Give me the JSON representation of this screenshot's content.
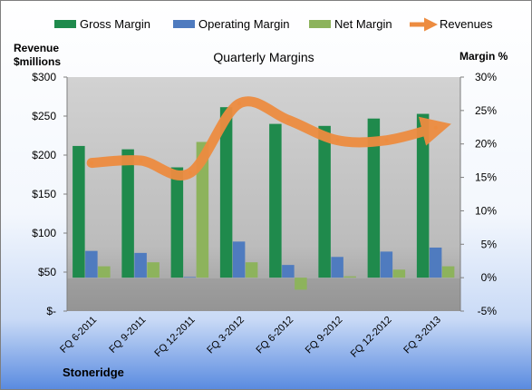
{
  "chart_data": {
    "type": "bar",
    "title": "Quarterly Margins",
    "company": "Stoneridge",
    "y_left_label_line1": "Revenue",
    "y_left_label_line2": "$millions",
    "y_right_label": "Margin %",
    "categories": [
      "FQ 6-2011",
      "FQ 9-2011",
      "FQ 12-2011",
      "FQ 3-2012",
      "FQ 6-2012",
      "FQ 9-2012",
      "FQ 12-2012",
      "FQ 3-2013"
    ],
    "left_axis": {
      "min": 0,
      "max": 300,
      "ticks": [
        0,
        50,
        100,
        150,
        200,
        250,
        300
      ],
      "tick_labels": [
        "$-",
        "$50",
        "$100",
        "$150",
        "$200",
        "$250",
        "$300"
      ]
    },
    "right_axis": {
      "min": -5,
      "max": 30,
      "ticks": [
        -5,
        0,
        5,
        10,
        15,
        20,
        25,
        30
      ],
      "tick_labels": [
        "-5%",
        "0%",
        "5%",
        "10%",
        "15%",
        "20%",
        "25%",
        "30%"
      ]
    },
    "series": [
      {
        "name": "Gross Margin",
        "kind": "bar",
        "axis": "right",
        "color": "#1f8a4c",
        "values": [
          19.7,
          19.2,
          16.5,
          25.5,
          23.0,
          22.7,
          23.8,
          24.5
        ]
      },
      {
        "name": "Operating Margin",
        "kind": "bar",
        "axis": "right",
        "color": "#4f7bbf",
        "values": [
          4.0,
          3.7,
          0.1,
          5.4,
          1.9,
          3.1,
          3.9,
          4.5
        ]
      },
      {
        "name": "Net Margin",
        "kind": "bar",
        "axis": "right",
        "color": "#8db35c",
        "values": [
          1.7,
          2.3,
          20.3,
          2.3,
          -1.8,
          0.2,
          1.2,
          1.7
        ]
      },
      {
        "name": "Revenues",
        "kind": "line",
        "axis": "left",
        "color": "#ed8c40",
        "values": [
          190,
          193,
          177,
          266,
          245,
          219,
          219,
          235
        ]
      }
    ],
    "legend_position": "top",
    "grid": false
  }
}
